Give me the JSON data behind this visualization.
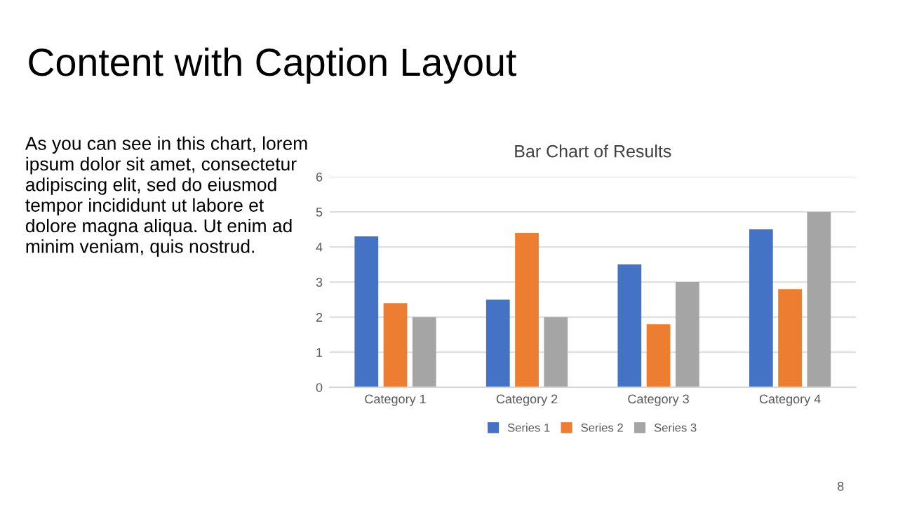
{
  "chart_data": {
    "type": "bar",
    "title": "Bar Chart of Results",
    "categories": [
      "Category 1",
      "Category 2",
      "Category 3",
      "Category 4"
    ],
    "series": [
      {
        "name": "Series 1",
        "color": "#4472c4",
        "values": [
          4.3,
          2.5,
          3.5,
          4.5
        ]
      },
      {
        "name": "Series 2",
        "color": "#ed7d31",
        "values": [
          2.4,
          4.4,
          1.8,
          2.8
        ]
      },
      {
        "name": "Series 3",
        "color": "#a5a5a5",
        "values": [
          2,
          2,
          3,
          5
        ]
      }
    ],
    "ylim": [
      0,
      6
    ],
    "yticks": [
      0,
      1,
      2,
      3,
      4,
      5,
      6
    ],
    "grid": "y",
    "legend": "bottom",
    "annotations": [
      "Content with Caption Layout",
      "As you can see in this chart, lorem\nipsum dolor sit amet, consectetur\nadipiscing elit, sed do eiusmod\ntempor incididunt ut labore et\ndolore magna aliqua. Ut enim ad\nminim veniam, quis nostrud.",
      "8"
    ]
  }
}
